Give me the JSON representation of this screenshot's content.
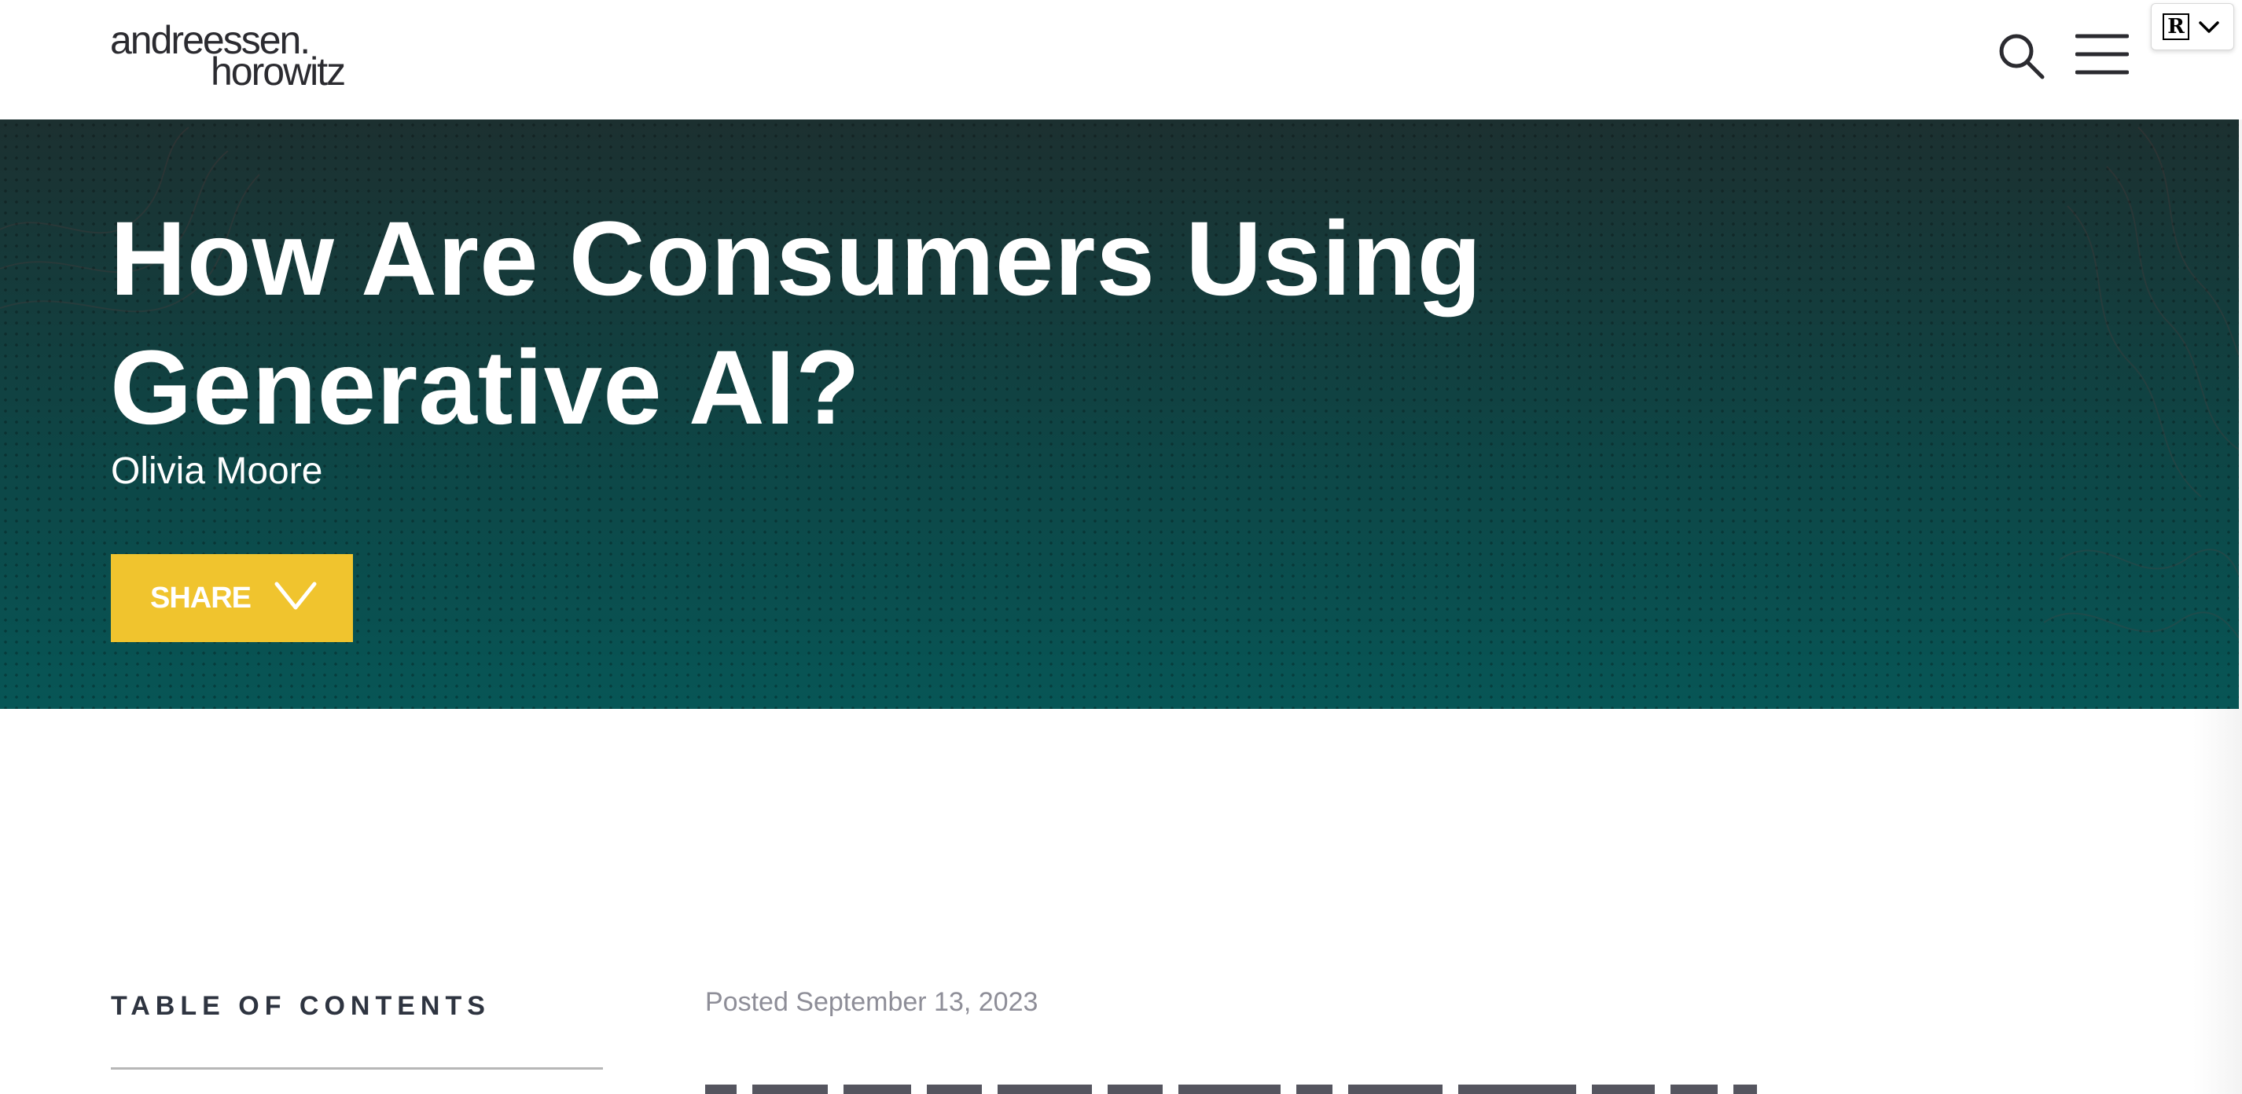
{
  "header": {
    "logo_line1": "andreessen.",
    "logo_line2": "horowitz",
    "search_icon": "search-icon",
    "menu_icon": "hamburger-menu-icon"
  },
  "extension_widget": {
    "logo_letter": "R",
    "chevron_icon": "chevron-down-icon"
  },
  "hero": {
    "title": "How Are Consumers Using Generative AI?",
    "author": "Olivia Moore",
    "share_label": "SHARE",
    "share_icon": "chevron-down-icon",
    "gradient_top": "#1c3030",
    "gradient_bottom": "#075656"
  },
  "content": {
    "toc_heading": "TABLE OF CONTENTS",
    "posted": "Posted September 13, 2023"
  },
  "colors": {
    "share_button": "#f0c42e",
    "text_dark": "#2e3440",
    "text_muted": "#8e8e98"
  }
}
